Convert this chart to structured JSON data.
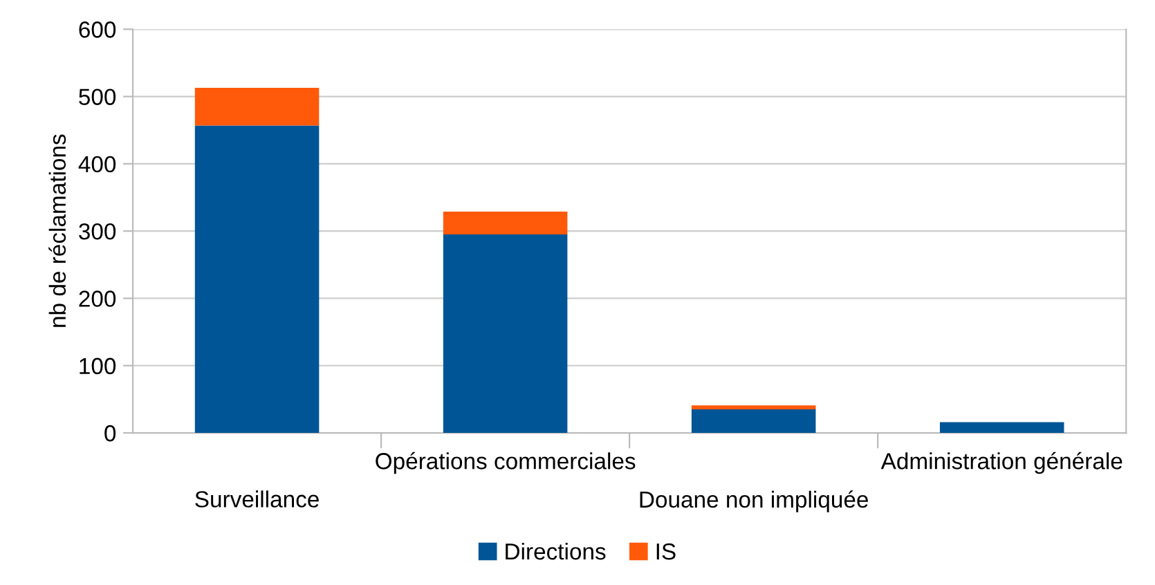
{
  "chart_data": {
    "type": "bar",
    "stacked": true,
    "ylabel": "nb de réclamations",
    "categories": [
      "Surveillance",
      "Opérations commerciales",
      "Douane non impliquée",
      "Administration générale"
    ],
    "series": [
      {
        "name": "Directions",
        "color": "#005596",
        "values": [
          457,
          295,
          35,
          16
        ]
      },
      {
        "name": "IS",
        "color": "#ff5a0a",
        "values": [
          56,
          34,
          6,
          null
        ]
      }
    ],
    "ylim": [
      0,
      600
    ],
    "yticks": [
      0,
      100,
      200,
      300,
      400,
      500,
      600
    ],
    "grid": "y",
    "legend": "bottom"
  }
}
